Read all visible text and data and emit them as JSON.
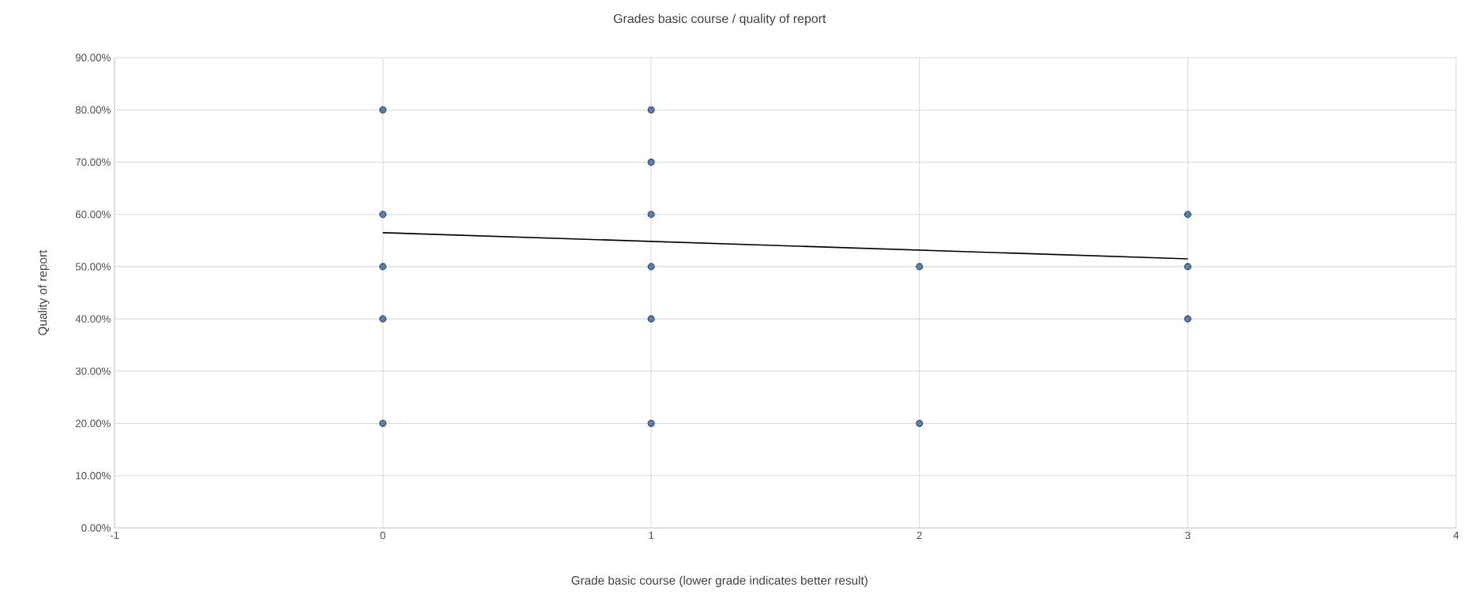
{
  "chart_data": {
    "type": "scatter",
    "title": "Grades basic course / quality of report",
    "xlabel": "Grade basic course (lower grade indicates better result)",
    "ylabel": "Quality of report",
    "series": [
      {
        "type": "scatter",
        "marker": "circle",
        "color": "#4f81bd",
        "x": [
          0,
          0,
          0,
          0,
          0,
          1,
          1,
          1,
          1,
          1,
          1,
          2,
          2,
          3,
          3,
          3
        ],
        "values": [
          0.8,
          0.6,
          0.5,
          0.4,
          0.2,
          0.8,
          0.7,
          0.6,
          0.5,
          0.4,
          0.2,
          0.5,
          0.2,
          0.6,
          0.5,
          0.4
        ]
      },
      {
        "type": "line",
        "marker": "none",
        "color": "#000000",
        "x": [
          0,
          3
        ],
        "values": [
          0.565,
          0.515
        ]
      }
    ],
    "grid": true,
    "xlim": [
      -1,
      4
    ],
    "xticks": [
      -1,
      0,
      1,
      2,
      3,
      4
    ],
    "ylim": [
      0,
      0.9
    ],
    "yticks": [
      {
        "value": 0,
        "label": "0.00%"
      },
      {
        "value": 0.1,
        "label": "10.00%"
      },
      {
        "value": 0.2,
        "label": "20.00%"
      },
      {
        "value": 0.3,
        "label": "30.00%"
      },
      {
        "value": 0.4,
        "label": "40.00%"
      },
      {
        "value": 0.5,
        "label": "50.00%"
      },
      {
        "value": 0.6,
        "label": "60.00%"
      },
      {
        "value": 0.7,
        "label": "70.00%"
      },
      {
        "value": 0.8,
        "label": "80.00%"
      },
      {
        "value": 0.9,
        "label": "90.00%"
      }
    ]
  }
}
